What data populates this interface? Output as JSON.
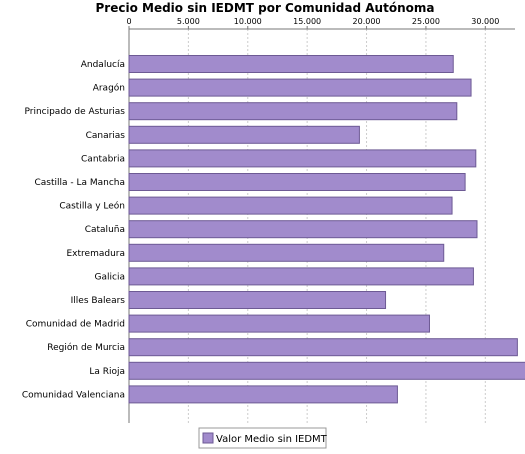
{
  "colors": {
    "bar_fill": "#a18bcc",
    "bar_stroke": "#6d5a94",
    "gridline": "#cccccc",
    "axis": "#777777",
    "legend_border": "#999999"
  },
  "chart_data": {
    "type": "bar",
    "orientation": "horizontal",
    "title": "Precio Medio sin IEDMT por Comunidad Autónoma",
    "xlabel": "",
    "ylabel": "",
    "xlim": [
      0,
      32500
    ],
    "x_ticks": [
      0,
      5000,
      10000,
      15000,
      20000,
      25000,
      30000
    ],
    "x_tick_labels": [
      "0",
      "5.000",
      "10.000",
      "15.000",
      "20.000",
      "25.000",
      "30.000"
    ],
    "x_axis_position": "top",
    "grid": true,
    "legend_position": "bottom-center",
    "categories": [
      "Andalucía",
      "Aragón",
      "Principado de Asturias",
      "Canarias",
      "Cantabria",
      "Castilla - La Mancha",
      "Castilla y León",
      "Cataluña",
      "Extremadura",
      "Galicia",
      "Illes Balears",
      "Comunidad de Madrid",
      "Región de Murcia",
      "La Rioja",
      "Comunidad Valenciana"
    ],
    "series": [
      {
        "name": "Valor Medio sin IEDMT",
        "values": [
          27300,
          28800,
          27600,
          19400,
          29200,
          28300,
          27200,
          29300,
          26500,
          29000,
          21600,
          25300,
          32700,
          33700,
          22600
        ]
      }
    ]
  }
}
